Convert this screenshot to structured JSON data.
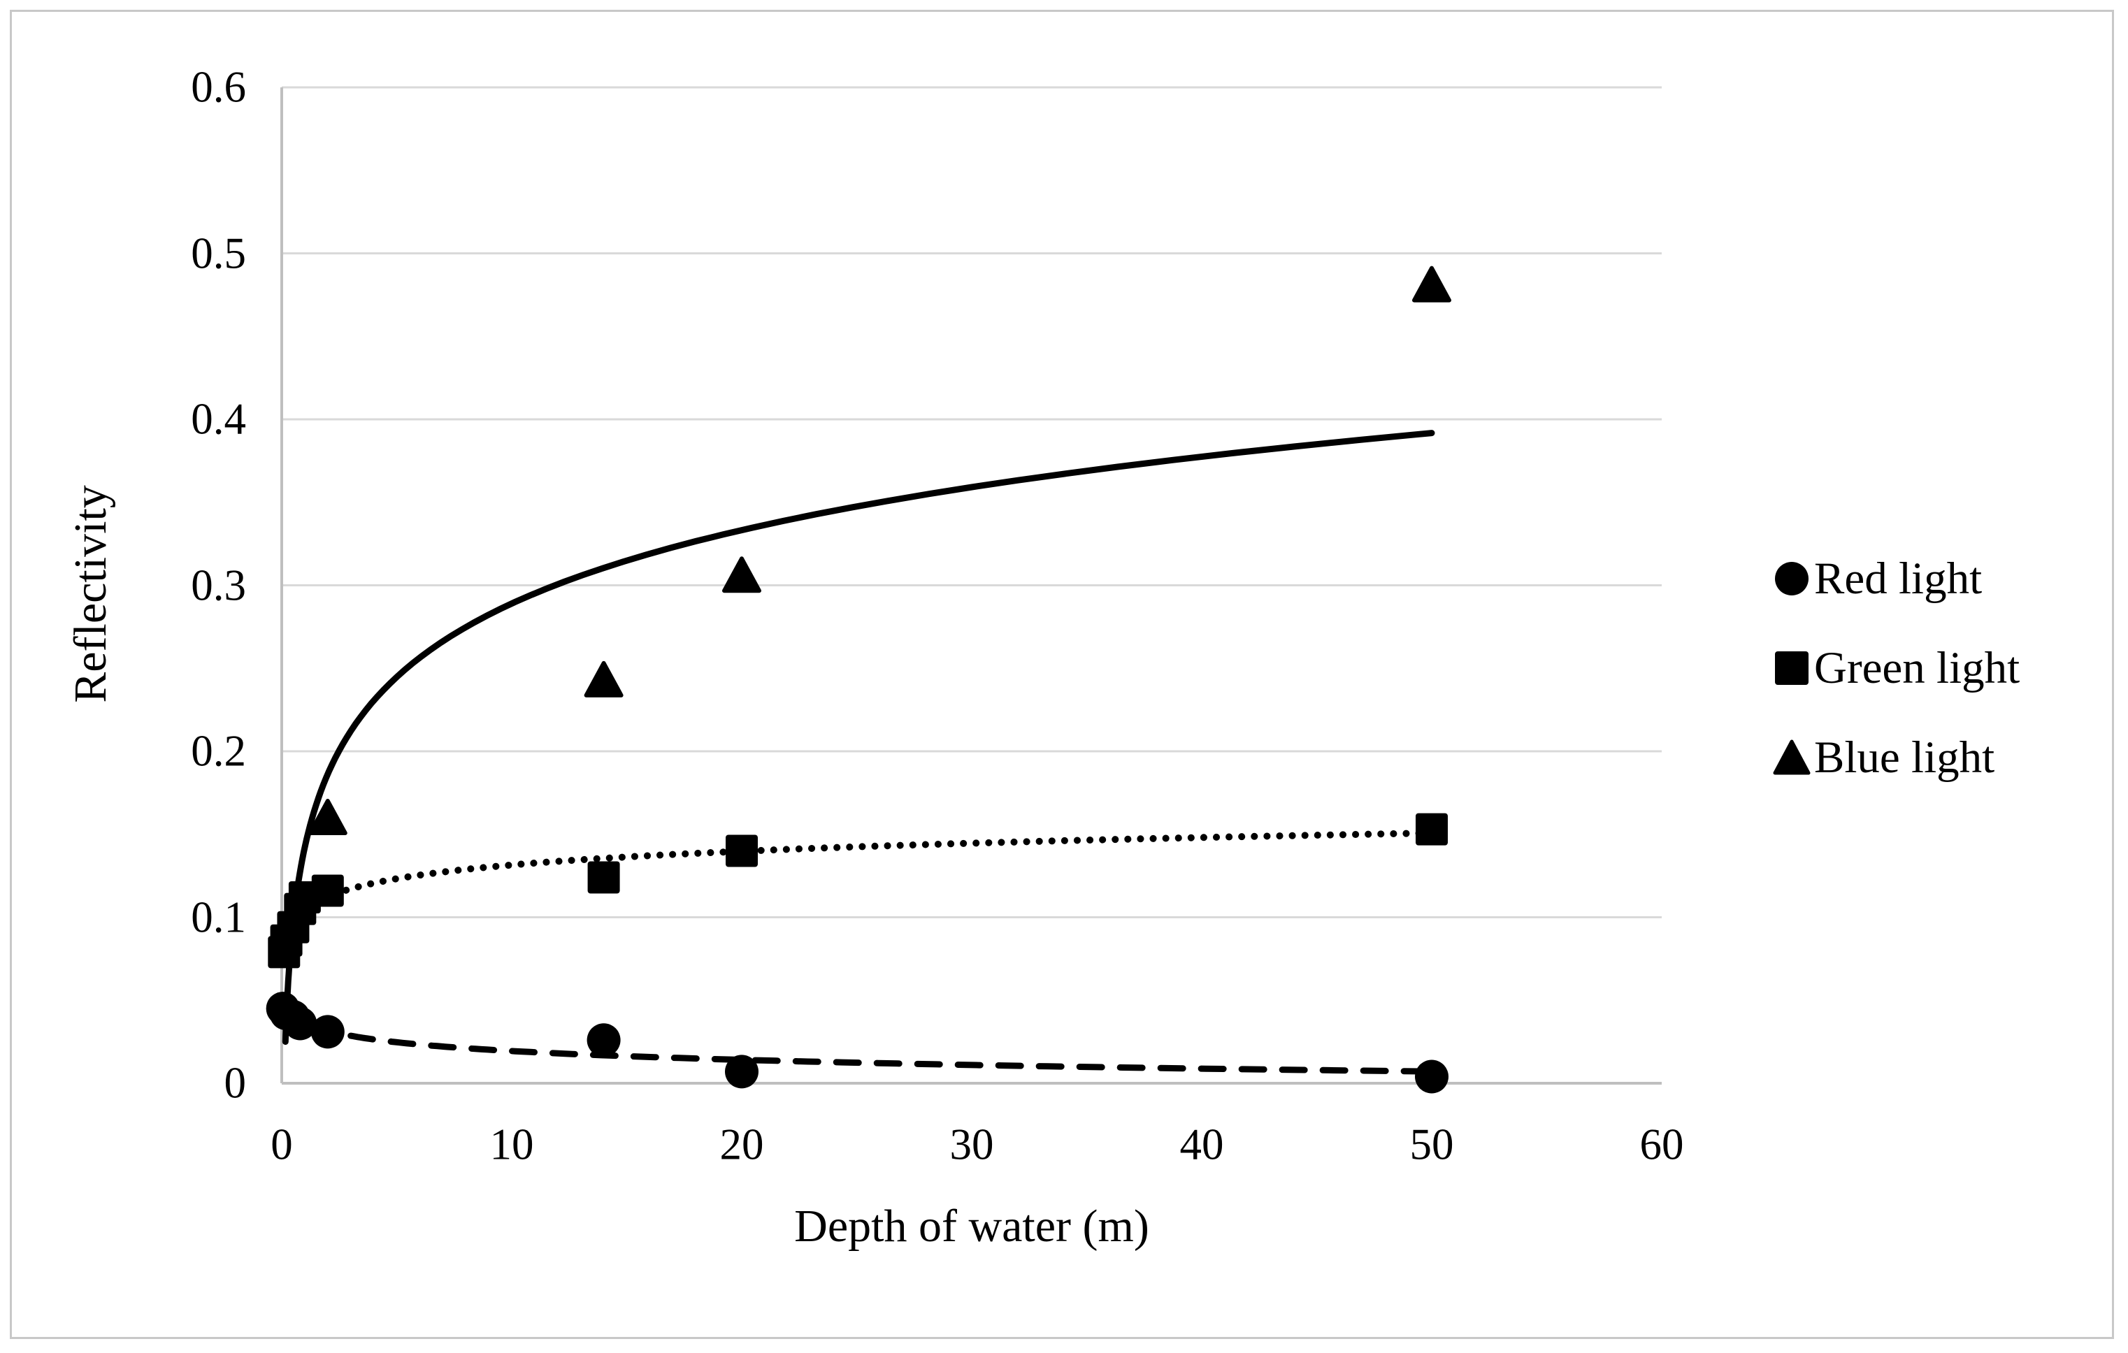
{
  "chart_data": {
    "type": "scatter",
    "title": "",
    "xlabel": "Depth of water (m)",
    "ylabel": "Reflectivity",
    "xlim": [
      0,
      60
    ],
    "ylim": [
      0,
      0.6
    ],
    "x_ticks": [
      0,
      10,
      20,
      30,
      40,
      50,
      60
    ],
    "y_ticks": [
      0,
      0.1,
      0.2,
      0.3,
      0.4,
      0.5,
      0.6
    ],
    "grid": "horizontal-only",
    "legend_position": "right-middle",
    "colors": {
      "series": "#000000",
      "gridline": "#d9d9d9",
      "axis_line": "#bfbfbf",
      "chart_border": "#c8c8c8",
      "background": "#ffffff"
    },
    "series": [
      {
        "name": "Red light",
        "marker": "circle",
        "color": "#000000",
        "points": [
          [
            0.05,
            0.045
          ],
          [
            0.2,
            0.042
          ],
          [
            0.5,
            0.04
          ],
          [
            0.8,
            0.036
          ],
          [
            2,
            0.031
          ],
          [
            14,
            0.026
          ],
          [
            20,
            0.007
          ],
          [
            50,
            0.004
          ]
        ],
        "trendline": {
          "style": "dashed",
          "model": "y = 0.037 - 0.0176*log10(x)",
          "a": -0.0176,
          "b": 0.037,
          "x_range": [
            3.0,
            50
          ]
        }
      },
      {
        "name": "Green light",
        "marker": "square",
        "color": "#000000",
        "points": [
          [
            0.1,
            0.079
          ],
          [
            0.2,
            0.086
          ],
          [
            0.5,
            0.094
          ],
          [
            0.8,
            0.105
          ],
          [
            1,
            0.112
          ],
          [
            2,
            0.116
          ],
          [
            14,
            0.124
          ],
          [
            20,
            0.14
          ],
          [
            50,
            0.153
          ]
        ],
        "trendline": {
          "style": "dotted",
          "model": "y = 0.104 + 0.0275*log10(x)",
          "a": 0.0275,
          "b": 0.104,
          "x_range": [
            2.8,
            50
          ]
        }
      },
      {
        "name": "Blue light",
        "marker": "triangle",
        "color": "#000000",
        "points": [
          [
            2,
            0.16
          ],
          [
            14,
            0.243
          ],
          [
            20,
            0.306
          ],
          [
            50,
            0.481
          ]
        ],
        "trendline": {
          "style": "solid",
          "model": "y = 0.142 + 0.147*log10(x)",
          "a": 0.147,
          "b": 0.142,
          "x_range": [
            0.16,
            50
          ]
        }
      }
    ]
  }
}
